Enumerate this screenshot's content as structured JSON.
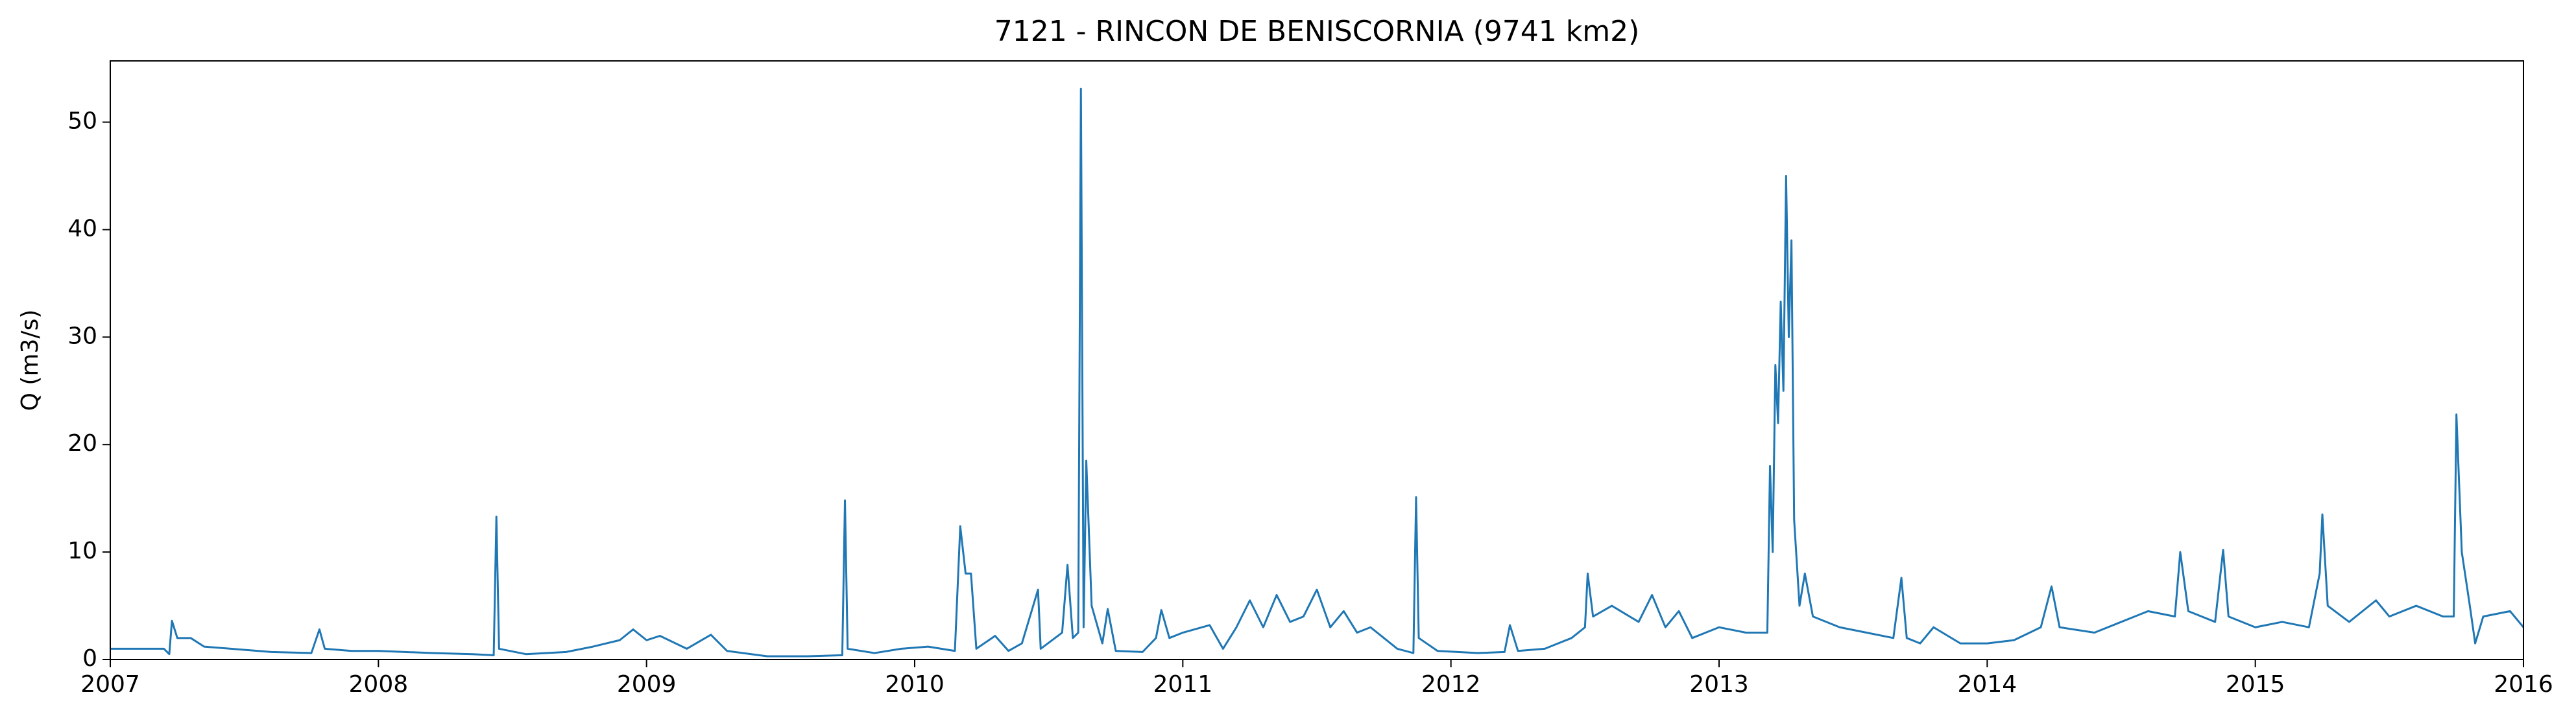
{
  "chart_data": {
    "type": "line",
    "title": "7121 - RINCON DE BENISCORNIA (9741 km2)",
    "y_label": "Q (m3/s)",
    "color": "#1f77b4",
    "x": [
      2007.0,
      2007.2,
      2007.22,
      2007.23,
      2007.25,
      2007.3,
      2007.35,
      2007.45,
      2007.6,
      2007.75,
      2007.78,
      2007.8,
      2007.9,
      2008.0,
      2008.2,
      2008.35,
      2008.43,
      2008.44,
      2008.45,
      2008.55,
      2008.7,
      2008.8,
      2008.9,
      2008.95,
      2009.0,
      2009.05,
      2009.15,
      2009.24,
      2009.3,
      2009.45,
      2009.6,
      2009.73,
      2009.74,
      2009.75,
      2009.85,
      2009.95,
      2010.05,
      2010.15,
      2010.17,
      2010.19,
      2010.21,
      2010.23,
      2010.3,
      2010.35,
      2010.4,
      2010.46,
      2010.47,
      2010.55,
      2010.57,
      2010.59,
      2010.61,
      2010.62,
      2010.63,
      2010.64,
      2010.66,
      2010.7,
      2010.72,
      2010.75,
      2010.85,
      2010.9,
      2010.92,
      2010.95,
      2011.0,
      2011.1,
      2011.15,
      2011.2,
      2011.25,
      2011.3,
      2011.35,
      2011.4,
      2011.45,
      2011.5,
      2011.55,
      2011.6,
      2011.65,
      2011.7,
      2011.75,
      2011.8,
      2011.86,
      2011.87,
      2011.88,
      2011.95,
      2012.1,
      2012.2,
      2012.22,
      2012.25,
      2012.35,
      2012.45,
      2012.5,
      2012.51,
      2012.53,
      2012.6,
      2012.7,
      2012.75,
      2012.8,
      2012.85,
      2012.9,
      2013.0,
      2013.1,
      2013.18,
      2013.19,
      2013.2,
      2013.21,
      2013.22,
      2013.23,
      2013.24,
      2013.25,
      2013.26,
      2013.27,
      2013.28,
      2013.3,
      2013.32,
      2013.35,
      2013.45,
      2013.55,
      2013.65,
      2013.68,
      2013.7,
      2013.75,
      2013.8,
      2013.9,
      2014.0,
      2014.1,
      2014.2,
      2014.24,
      2014.27,
      2014.4,
      2014.5,
      2014.6,
      2014.7,
      2014.72,
      2014.75,
      2014.85,
      2014.88,
      2014.9,
      2015.0,
      2015.1,
      2015.2,
      2015.24,
      2015.25,
      2015.27,
      2015.35,
      2015.45,
      2015.5,
      2015.6,
      2015.7,
      2015.74,
      2015.75,
      2015.77,
      2015.8,
      2015.82,
      2015.85,
      2015.95,
      2016.0
    ],
    "values": [
      1.0,
      1.0,
      0.5,
      3.6,
      2.0,
      2.0,
      1.2,
      1.0,
      0.7,
      0.6,
      2.8,
      1.0,
      0.8,
      0.8,
      0.6,
      0.5,
      0.4,
      13.3,
      1.0,
      0.5,
      0.7,
      1.2,
      1.8,
      2.8,
      1.8,
      2.2,
      1.0,
      2.3,
      0.8,
      0.3,
      0.3,
      0.4,
      14.8,
      1.0,
      0.6,
      1.0,
      1.2,
      0.8,
      12.4,
      8.0,
      8.0,
      1.0,
      2.2,
      0.8,
      1.5,
      6.5,
      1.0,
      2.5,
      8.8,
      2.0,
      2.5,
      53.1,
      3.0,
      18.5,
      5.0,
      1.5,
      4.7,
      0.8,
      0.7,
      2.0,
      4.6,
      2.0,
      2.5,
      3.2,
      1.0,
      3.0,
      5.5,
      3.0,
      6.0,
      3.5,
      4.0,
      6.5,
      3.0,
      4.5,
      2.5,
      3.0,
      2.0,
      1.0,
      0.6,
      15.1,
      2.0,
      0.8,
      0.6,
      0.7,
      3.2,
      0.8,
      1.0,
      2.0,
      3.0,
      8.0,
      4.0,
      5.0,
      3.5,
      6.0,
      3.0,
      4.5,
      2.0,
      3.0,
      2.5,
      2.5,
      18.0,
      10.0,
      27.4,
      22.0,
      33.3,
      25.0,
      45.0,
      30.0,
      39.0,
      13.0,
      5.0,
      8.0,
      4.0,
      3.0,
      2.5,
      2.0,
      7.6,
      2.0,
      1.5,
      3.0,
      1.5,
      1.5,
      1.8,
      3.0,
      6.8,
      3.0,
      2.5,
      3.5,
      4.5,
      4.0,
      10.0,
      4.5,
      3.5,
      10.2,
      4.0,
      3.0,
      3.5,
      3.0,
      8.0,
      13.5,
      5.0,
      3.5,
      5.5,
      4.0,
      5.0,
      4.0,
      4.0,
      22.8,
      10.0,
      5.0,
      1.5,
      4.0,
      4.5,
      3.0
    ],
    "xlim": [
      2007,
      2016
    ],
    "xticks": [
      2007,
      2008,
      2009,
      2010,
      2011,
      2012,
      2013,
      2014,
      2015,
      2016
    ],
    "ylim": [
      0,
      55.7
    ],
    "yticks": [
      0,
      10,
      20,
      30,
      40,
      50
    ]
  }
}
